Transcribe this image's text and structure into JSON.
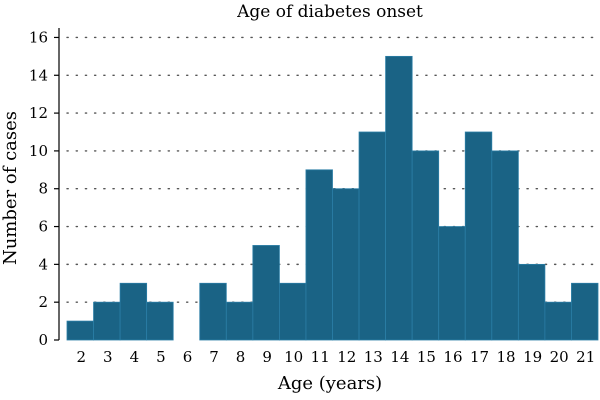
{
  "chart_data": {
    "type": "bar",
    "title": "Age of diabetes onset",
    "xlabel": "Age (years)",
    "ylabel": "Number of cases",
    "categories": [
      "2",
      "3",
      "4",
      "5",
      "6",
      "7",
      "8",
      "9",
      "10",
      "11",
      "12",
      "13",
      "14",
      "15",
      "16",
      "17",
      "18",
      "19",
      "20",
      "21"
    ],
    "values": [
      1,
      2,
      3,
      2,
      0,
      3,
      2,
      5,
      3,
      9,
      8,
      11,
      15,
      10,
      6,
      11,
      10,
      4,
      2,
      3
    ],
    "ylim": [
      0,
      16.5
    ],
    "yticks": [
      0,
      2,
      4,
      6,
      8,
      10,
      12,
      14,
      16
    ],
    "grid": "horizontal-dotted",
    "legend": "none",
    "colors": {
      "bar": "#1a6385",
      "bar_edge": "#2b7ea6",
      "grid": "#555555"
    }
  }
}
